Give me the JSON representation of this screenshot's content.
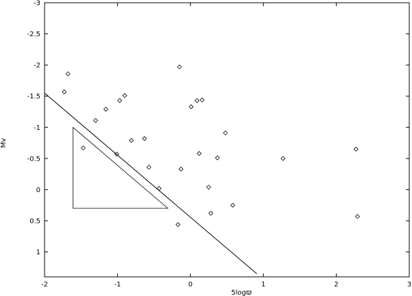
{
  "chart_data": {
    "type": "scatter",
    "xlabel": "5logϖ",
    "ylabel": "Mv",
    "xlim": [
      -2,
      3
    ],
    "ylim": [
      1.4,
      -3
    ],
    "y_inverted": true,
    "grid": false,
    "x_ticks": [
      "-2",
      "-1",
      "0",
      "1",
      "2",
      "3"
    ],
    "x_tick_values": [
      -2,
      -1,
      0,
      1,
      2,
      3
    ],
    "y_ticks": [
      "-3",
      "-2.5",
      "-2",
      "-1.5",
      "-1",
      "-0.5",
      "0",
      "0.5",
      "1"
    ],
    "y_tick_values": [
      -3,
      -2.5,
      -2,
      -1.5,
      -1,
      -0.5,
      0,
      0.5,
      1
    ],
    "series": [
      {
        "marker": "diamond-open",
        "points": [
          {
            "x": -1.68,
            "y": -1.86
          },
          {
            "x": -1.73,
            "y": -1.57
          },
          {
            "x": -1.47,
            "y": -0.67
          },
          {
            "x": -1.3,
            "y": -1.11
          },
          {
            "x": -1.16,
            "y": -1.29
          },
          {
            "x": -1.01,
            "y": -0.57
          },
          {
            "x": -0.97,
            "y": -1.43
          },
          {
            "x": -0.9,
            "y": -1.51
          },
          {
            "x": -0.81,
            "y": -0.79
          },
          {
            "x": -0.63,
            "y": -0.82
          },
          {
            "x": -0.57,
            "y": -0.36
          },
          {
            "x": -0.43,
            "y": -0.02
          },
          {
            "x": -0.17,
            "y": 0.56
          },
          {
            "x": -0.15,
            "y": -1.97
          },
          {
            "x": -0.13,
            "y": -0.33
          },
          {
            "x": 0.01,
            "y": -1.33
          },
          {
            "x": 0.09,
            "y": -1.43
          },
          {
            "x": 0.12,
            "y": -0.58
          },
          {
            "x": 0.16,
            "y": -1.44
          },
          {
            "x": 0.25,
            "y": -0.04
          },
          {
            "x": 0.28,
            "y": 0.38
          },
          {
            "x": 0.37,
            "y": -0.51
          },
          {
            "x": 0.48,
            "y": -0.91
          },
          {
            "x": 0.58,
            "y": 0.25
          },
          {
            "x": 1.27,
            "y": -0.5
          },
          {
            "x": 2.27,
            "y": -0.65
          },
          {
            "x": 2.29,
            "y": 0.43
          }
        ]
      }
    ],
    "lines": [
      {
        "from": {
          "x": -2.0,
          "y": -1.55
        },
        "to": {
          "x": 0.91,
          "y": 1.35
        }
      }
    ],
    "polygons": [
      {
        "points": [
          {
            "x": -1.61,
            "y": -1.0
          },
          {
            "x": -1.61,
            "y": 0.3
          },
          {
            "x": -0.31,
            "y": 0.3
          }
        ]
      }
    ]
  }
}
